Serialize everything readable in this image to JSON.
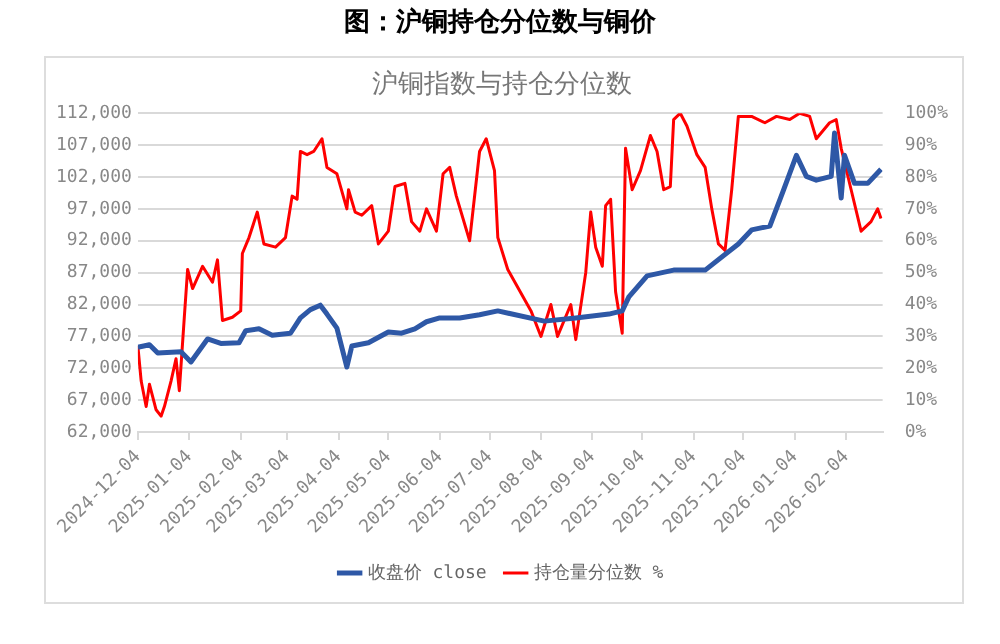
{
  "chart_data": {
    "type": "line",
    "title": "图：沪铜持仓分位数与铜价",
    "subtitle": "沪铜指数与持仓分位数",
    "series": [
      {
        "name": "收盘价 close",
        "color": "#2e58a6",
        "axis": "y",
        "x": [
          "2024-12-04",
          "2024-12-11",
          "2024-12-16",
          "2024-12-30",
          "2025-01-05",
          "2025-01-15",
          "2025-01-23",
          "2025-02-03",
          "2025-02-07",
          "2025-02-15",
          "2025-02-23",
          "2025-03-06",
          "2025-03-12",
          "2025-03-18",
          "2025-03-24",
          "2025-03-28",
          "2025-04-03",
          "2025-04-09",
          "2025-04-12",
          "2025-04-22",
          "2025-05-04",
          "2025-05-12",
          "2025-05-20",
          "2025-05-27",
          "2025-06-04",
          "2025-06-16",
          "2025-06-28",
          "2025-07-09",
          "2025-08-06",
          "2025-08-25",
          "2025-09-14",
          "2025-09-22",
          "2025-09-26",
          "2025-10-07",
          "2025-10-23",
          "2025-11-11",
          "2025-12-01",
          "2025-12-09",
          "2025-12-20",
          "2025-12-28",
          "2026-01-05",
          "2026-01-11",
          "2026-01-17",
          "2026-01-26",
          "2026-01-28",
          "2026-02-01",
          "2026-02-03",
          "2026-02-09",
          "2026-02-17",
          "2026-02-25"
        ],
        "values": [
          75300,
          75700,
          74400,
          74600,
          73000,
          76600,
          75900,
          76000,
          77900,
          78200,
          77200,
          77500,
          79900,
          81200,
          81900,
          80500,
          78300,
          72200,
          75500,
          76000,
          77700,
          77500,
          78200,
          79300,
          79900,
          79900,
          80400,
          81000,
          79400,
          79900,
          80500,
          81000,
          83200,
          86500,
          87400,
          87400,
          91500,
          93700,
          94300,
          99800,
          105400,
          102100,
          101500,
          102100,
          108900,
          98700,
          105400,
          101000,
          101000,
          103200
        ]
      },
      {
        "name": "持仓量分位数 %",
        "color": "#ff0000",
        "axis": "y2",
        "x": [
          "2024-12-04",
          "2024-12-06",
          "2024-12-09",
          "2024-12-11",
          "2024-12-15",
          "2024-12-18",
          "2024-12-20",
          "2024-12-24",
          "2024-12-27",
          "2024-12-29",
          "2025-01-01",
          "2025-01-03",
          "2025-01-06",
          "2025-01-12",
          "2025-01-18",
          "2025-01-21",
          "2025-01-24",
          "2025-01-30",
          "2025-02-04",
          "2025-02-05",
          "2025-02-09",
          "2025-02-14",
          "2025-02-18",
          "2025-02-25",
          "2025-03-03",
          "2025-03-07",
          "2025-03-10",
          "2025-03-12",
          "2025-03-16",
          "2025-03-20",
          "2025-03-25",
          "2025-03-28",
          "2025-04-03",
          "2025-04-09",
          "2025-04-10",
          "2025-04-14",
          "2025-04-18",
          "2025-04-24",
          "2025-04-28",
          "2025-05-04",
          "2025-05-08",
          "2025-05-14",
          "2025-05-18",
          "2025-05-23",
          "2025-05-27",
          "2025-06-02",
          "2025-06-06",
          "2025-06-10",
          "2025-06-14",
          "2025-06-22",
          "2025-06-28",
          "2025-07-02",
          "2025-07-07",
          "2025-07-09",
          "2025-07-15",
          "2025-07-29",
          "2025-08-04",
          "2025-08-10",
          "2025-08-14",
          "2025-08-22",
          "2025-08-25",
          "2025-08-31",
          "2025-09-03",
          "2025-09-06",
          "2025-09-10",
          "2025-09-12",
          "2025-09-15",
          "2025-09-18",
          "2025-09-22",
          "2025-09-24",
          "2025-09-28",
          "2025-10-03",
          "2025-10-09",
          "2025-10-13",
          "2025-10-17",
          "2025-10-21",
          "2025-10-23",
          "2025-10-27",
          "2025-10-31",
          "2025-11-06",
          "2025-11-11",
          "2025-11-15",
          "2025-11-19",
          "2025-11-23",
          "2025-11-27",
          "2025-12-01",
          "2025-12-09",
          "2025-12-17",
          "2025-12-24",
          "2026-01-01",
          "2026-01-07",
          "2026-01-13",
          "2026-01-17",
          "2026-01-25",
          "2026-01-29",
          "2026-02-01",
          "2026-02-07",
          "2026-02-13",
          "2026-02-19",
          "2026-02-23",
          "2026-02-25"
        ],
        "values": [
          27,
          16,
          8,
          15,
          7,
          5,
          8,
          16,
          23,
          13,
          36,
          51,
          45,
          52,
          47,
          54,
          35,
          36,
          38,
          56,
          61,
          69,
          59,
          58,
          61,
          74,
          73,
          88,
          87,
          88,
          92,
          83,
          81,
          70,
          76,
          69,
          68,
          71,
          59,
          63,
          77,
          78,
          66,
          63,
          70,
          63,
          81,
          83,
          74,
          60,
          88,
          92,
          82,
          61,
          51,
          38,
          30,
          40,
          30,
          40,
          29,
          50,
          69,
          58,
          52,
          71,
          73,
          44,
          31,
          89,
          76,
          82,
          93,
          88,
          76,
          77,
          98,
          100,
          96,
          87,
          83,
          70,
          59,
          57,
          76,
          99,
          99,
          97,
          99,
          98,
          100,
          99,
          92,
          97,
          98,
          89,
          76,
          63,
          66,
          70,
          67
        ]
      }
    ],
    "xlim": [
      "2024-12-04",
      "2026-02-26"
    ],
    "xticks": [
      "2024-12-04",
      "2025-01-04",
      "2025-02-04",
      "2025-03-04",
      "2025-04-04",
      "2025-05-04",
      "2025-06-04",
      "2025-07-04",
      "2025-08-04",
      "2025-09-04",
      "2025-10-04",
      "2025-11-04",
      "2025-12-04",
      "2026-01-04",
      "2026-02-04"
    ],
    "ylim": [
      62000,
      112000
    ],
    "yticks": [
      {
        "value": 62000,
        "label": "62,000"
      },
      {
        "value": 67000,
        "label": "67,000"
      },
      {
        "value": 72000,
        "label": "72,000"
      },
      {
        "value": 77000,
        "label": "77,000"
      },
      {
        "value": 82000,
        "label": "82,000"
      },
      {
        "value": 87000,
        "label": "87,000"
      },
      {
        "value": 92000,
        "label": "92,000"
      },
      {
        "value": 97000,
        "label": "97,000"
      },
      {
        "value": 102000,
        "label": "102,000"
      },
      {
        "value": 107000,
        "label": "107,000"
      },
      {
        "value": 112000,
        "label": "112,000"
      }
    ],
    "y2lim": [
      0,
      100
    ],
    "y2ticks": [
      {
        "value": 0,
        "label": "0%"
      },
      {
        "value": 10,
        "label": "10%"
      },
      {
        "value": 20,
        "label": "20%"
      },
      {
        "value": 30,
        "label": "30%"
      },
      {
        "value": 40,
        "label": "40%"
      },
      {
        "value": 50,
        "label": "50%"
      },
      {
        "value": 60,
        "label": "60%"
      },
      {
        "value": 70,
        "label": "70%"
      },
      {
        "value": 80,
        "label": "80%"
      },
      {
        "value": 90,
        "label": "90%"
      },
      {
        "value": 100,
        "label": "100%"
      }
    ],
    "grid": "y",
    "legend": "bottom",
    "marker": "none",
    "line_style": "solid"
  }
}
